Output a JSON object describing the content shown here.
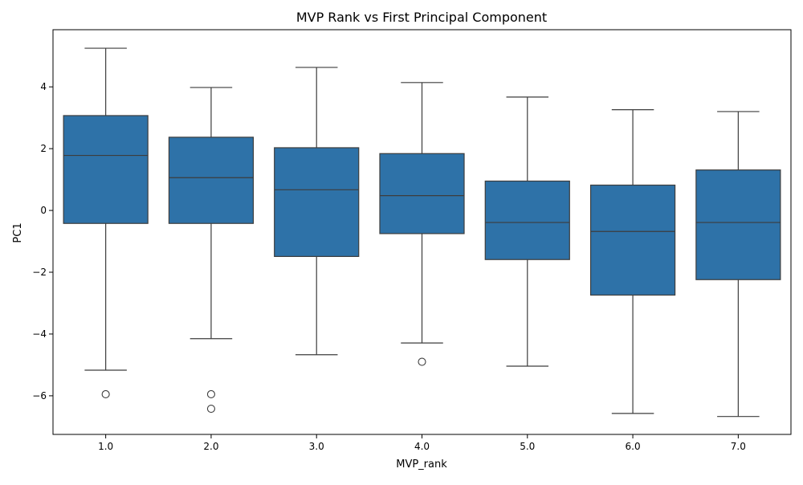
{
  "chart_data": {
    "type": "box",
    "title": "MVP Rank vs First Principal Component",
    "xlabel": "MVP_rank",
    "ylabel": "PC1",
    "categories": [
      "1.0",
      "2.0",
      "3.0",
      "4.0",
      "5.0",
      "6.0",
      "7.0"
    ],
    "ylim": [
      -7.25,
      5.85
    ],
    "yticks": [
      {
        "value": 4,
        "label": "4"
      },
      {
        "value": 2,
        "label": "2"
      },
      {
        "value": 0,
        "label": "0"
      },
      {
        "value": -2,
        "label": "−2"
      },
      {
        "value": -4,
        "label": "−4"
      },
      {
        "value": -6,
        "label": "−6"
      }
    ],
    "boxes": [
      {
        "category": "1.0",
        "whisker_low": -5.17,
        "q1": -0.42,
        "median": 1.78,
        "q3": 3.07,
        "whisker_high": 5.25,
        "outliers": [
          -5.95
        ]
      },
      {
        "category": "2.0",
        "whisker_low": -4.15,
        "q1": -0.42,
        "median": 1.06,
        "q3": 2.37,
        "whisker_high": 3.98,
        "outliers": [
          -5.95,
          -6.42
        ]
      },
      {
        "category": "3.0",
        "whisker_low": -4.67,
        "q1": -1.49,
        "median": 0.67,
        "q3": 2.03,
        "whisker_high": 4.63,
        "outliers": []
      },
      {
        "category": "4.0",
        "whisker_low": -4.29,
        "q1": -0.75,
        "median": 0.48,
        "q3": 1.84,
        "whisker_high": 4.14,
        "outliers": [
          -4.9
        ]
      },
      {
        "category": "5.0",
        "whisker_low": -5.04,
        "q1": -1.59,
        "median": -0.39,
        "q3": 0.95,
        "whisker_high": 3.67,
        "outliers": []
      },
      {
        "category": "6.0",
        "whisker_low": -6.57,
        "q1": -2.74,
        "median": -0.68,
        "q3": 0.82,
        "whisker_high": 3.26,
        "outliers": []
      },
      {
        "category": "7.0",
        "whisker_low": -6.67,
        "q1": -2.24,
        "median": -0.39,
        "q3": 1.31,
        "whisker_high": 3.2,
        "outliers": []
      }
    ],
    "box_color": "#2e72a8",
    "line_color": "#3d3d3d",
    "grid": false,
    "legend": "none"
  }
}
